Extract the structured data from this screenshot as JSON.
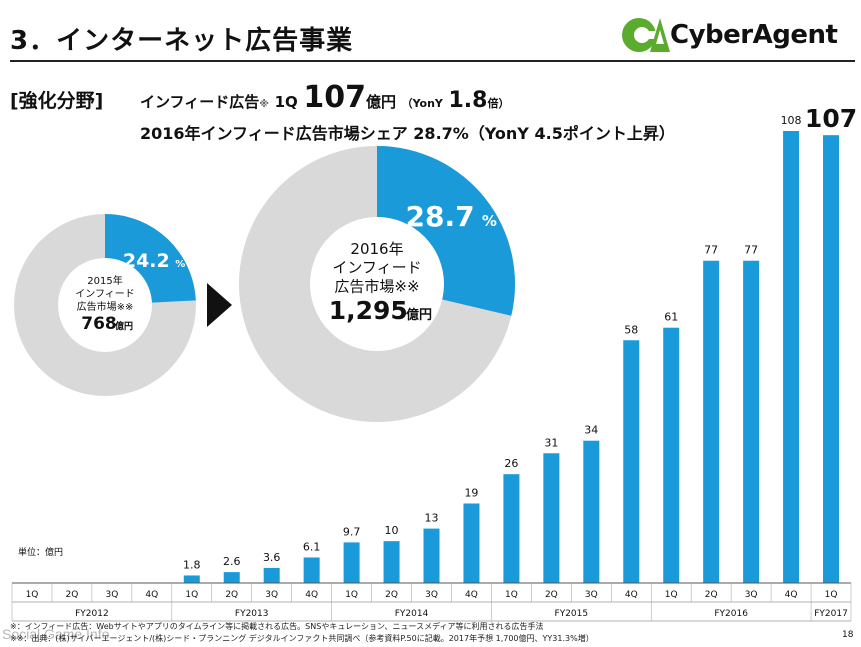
{
  "header": {
    "title": "3．インターネット広告事業",
    "logo_text": "CyberAgent"
  },
  "headline": {
    "focus_label": "[強化分野]",
    "line1": {
      "prefix": "インフィード広告",
      "note_mark": "※",
      "quarter": "1Q",
      "value": "107",
      "unit": "億円",
      "yony_label": "（YonY",
      "yony_value": "1.8",
      "yony_suffix": "倍）"
    },
    "line2": {
      "prefix": "2016年インフィード広告市場シェア 28.7%（YonY",
      "value": "4.5",
      "suffix": "ポイント上昇）"
    }
  },
  "donuts": [
    {
      "share_label": "24.2",
      "pct_sign": "%",
      "center_lines": [
        "2015年",
        "インフィード",
        "広告市場※※"
      ],
      "center_value": "768",
      "center_unit": "億円",
      "share": 24.2
    },
    {
      "share_label": "28.7",
      "pct_sign": "%",
      "center_lines": [
        "2016年",
        "インフィード",
        "広告市場※※"
      ],
      "center_value": "1,295",
      "center_unit": "億円",
      "share": 28.7
    }
  ],
  "chart_data": {
    "type": "bar",
    "unit_label": "単位：億円",
    "categories": [
      "1Q",
      "2Q",
      "3Q",
      "4Q",
      "1Q",
      "2Q",
      "3Q",
      "4Q",
      "1Q",
      "2Q",
      "3Q",
      "4Q",
      "1Q",
      "2Q",
      "3Q",
      "4Q",
      "1Q",
      "2Q",
      "3Q",
      "4Q",
      "1Q"
    ],
    "fiscal_years": [
      {
        "label": "FY2012",
        "span": 4
      },
      {
        "label": "FY2013",
        "span": 4
      },
      {
        "label": "FY2014",
        "span": 4
      },
      {
        "label": "FY2015",
        "span": 4
      },
      {
        "label": "FY2016",
        "span": 4
      },
      {
        "label": "FY2017",
        "span": 1
      }
    ],
    "values": [
      null,
      null,
      null,
      null,
      1.8,
      2.6,
      3.6,
      6.1,
      9.7,
      10,
      13,
      19,
      26,
      31,
      34,
      58,
      61,
      77,
      77,
      108,
      107
    ],
    "value_labels": [
      "",
      "",
      "",
      "",
      "1.8",
      "2.6",
      "3.6",
      "6.1",
      "9.7",
      "10",
      "13",
      "19",
      "26",
      "31",
      "34",
      "58",
      "61",
      "77",
      "77",
      "108",
      "107"
    ],
    "ylim": [
      0,
      108
    ],
    "colors": {
      "bar": "#1a9ad9",
      "donut_share": "#1a9ad9",
      "donut_rest": "#d9d9d9"
    }
  },
  "footer": {
    "footnote1": "※：インフィード広告：Webサイトやアプリのタイムライン等に掲載される広告。SNSやキュレーション、ニュースメディア等に利用される広告手法",
    "footnote2": "※※：出典：(株)サイバーエージェント/(株)シード・プランニング デジタルインファクト共同調べ（参考資料P.50に記載。2017年予想 1,700億円、YY31.3%増）",
    "watermark": "Social Game Info",
    "page_number": "18"
  },
  "logo_colors": {
    "green": "#5aab2e",
    "dark": "#111111"
  }
}
